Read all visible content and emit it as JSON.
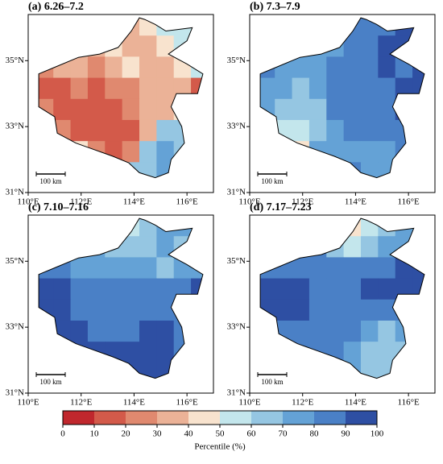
{
  "maps": {
    "xlim": [
      110,
      117
    ],
    "ylim": [
      31,
      36.4
    ],
    "xticks": [
      {
        "value": 110,
        "label": "110°E"
      },
      {
        "value": 112,
        "label": "112°E"
      },
      {
        "value": 114,
        "label": "114°E"
      },
      {
        "value": 116,
        "label": "116°E"
      }
    ],
    "yticks": [
      {
        "value": 31,
        "label": "31°N"
      },
      {
        "value": 33,
        "label": "33°N"
      },
      {
        "value": 35,
        "label": "35°N"
      }
    ],
    "scale_label": "100 km",
    "panels": [
      {
        "title": "(a) 6.26–7.2",
        "grid": [
          [
            50,
            50,
            50,
            50,
            45,
            30,
            40,
            50,
            50,
            50
          ],
          [
            45,
            45,
            40,
            35,
            40,
            35,
            30,
            45,
            50,
            50
          ],
          [
            20,
            30,
            30,
            25,
            35,
            45,
            35,
            30,
            40,
            50
          ],
          [
            15,
            15,
            20,
            15,
            20,
            25,
            30,
            30,
            35,
            15
          ],
          [
            20,
            15,
            10,
            10,
            15,
            20,
            30,
            35,
            40,
            45
          ],
          [
            30,
            25,
            15,
            10,
            10,
            15,
            35,
            60,
            65,
            60
          ],
          [
            50,
            50,
            40,
            20,
            15,
            25,
            60,
            70,
            65,
            70
          ],
          [
            50,
            50,
            50,
            50,
            60,
            65,
            60,
            70,
            75,
            60
          ]
        ]
      },
      {
        "title": "(b) 7.3–7.9",
        "grid": [
          [
            70,
            70,
            70,
            70,
            75,
            80,
            80,
            85,
            90,
            95
          ],
          [
            70,
            70,
            75,
            75,
            75,
            80,
            85,
            90,
            90,
            90
          ],
          [
            80,
            75,
            70,
            75,
            80,
            80,
            85,
            90,
            85,
            90
          ],
          [
            75,
            75,
            65,
            70,
            80,
            85,
            80,
            85,
            90,
            90
          ],
          [
            70,
            65,
            60,
            65,
            80,
            85,
            85,
            85,
            90,
            85
          ],
          [
            65,
            55,
            55,
            65,
            75,
            80,
            80,
            80,
            85,
            80
          ],
          [
            60,
            50,
            45,
            70,
            75,
            75,
            75,
            70,
            80,
            75
          ],
          [
            60,
            60,
            60,
            65,
            70,
            80,
            75,
            70,
            75,
            70
          ]
        ]
      },
      {
        "title": "(c) 7.10–7.16",
        "grid": [
          [
            70,
            70,
            70,
            70,
            40,
            55,
            65,
            70,
            70,
            70
          ],
          [
            70,
            70,
            70,
            70,
            65,
            60,
            60,
            70,
            65,
            70
          ],
          [
            80,
            80,
            75,
            70,
            70,
            75,
            70,
            65,
            70,
            75
          ],
          [
            90,
            90,
            85,
            80,
            80,
            80,
            80,
            80,
            85,
            90
          ],
          [
            90,
            90,
            85,
            80,
            80,
            80,
            85,
            85,
            80,
            80
          ],
          [
            90,
            90,
            90,
            85,
            80,
            85,
            90,
            90,
            80,
            80
          ],
          [
            90,
            90,
            90,
            90,
            90,
            95,
            95,
            95,
            85,
            80
          ],
          [
            90,
            90,
            90,
            90,
            90,
            95,
            95,
            90,
            85,
            80
          ]
        ]
      },
      {
        "title": "(d) 7.17–7.23",
        "grid": [
          [
            70,
            70,
            70,
            70,
            45,
            45,
            55,
            65,
            70,
            70
          ],
          [
            80,
            80,
            80,
            80,
            60,
            55,
            60,
            70,
            75,
            75
          ],
          [
            85,
            85,
            85,
            85,
            80,
            80,
            85,
            85,
            90,
            90
          ],
          [
            95,
            95,
            90,
            85,
            85,
            80,
            90,
            90,
            95,
            95
          ],
          [
            95,
            90,
            90,
            85,
            80,
            80,
            80,
            80,
            80,
            75
          ],
          [
            90,
            85,
            85,
            80,
            80,
            80,
            70,
            65,
            70,
            70
          ],
          [
            85,
            85,
            80,
            80,
            80,
            70,
            65,
            65,
            65,
            65
          ],
          [
            80,
            80,
            80,
            80,
            75,
            70,
            65,
            60,
            60,
            60
          ]
        ]
      }
    ],
    "colorbar": {
      "label": "Percentile (%)",
      "ticks": [
        0,
        10,
        20,
        30,
        40,
        50,
        60,
        70,
        80,
        90,
        100
      ],
      "colors": [
        "#c0272d",
        "#d35a4a",
        "#e0896f",
        "#ebb297",
        "#f8e3ce",
        "#c3e6ec",
        "#95c6e2",
        "#64a2d6",
        "#4a80c6",
        "#2e4fa3"
      ]
    }
  }
}
